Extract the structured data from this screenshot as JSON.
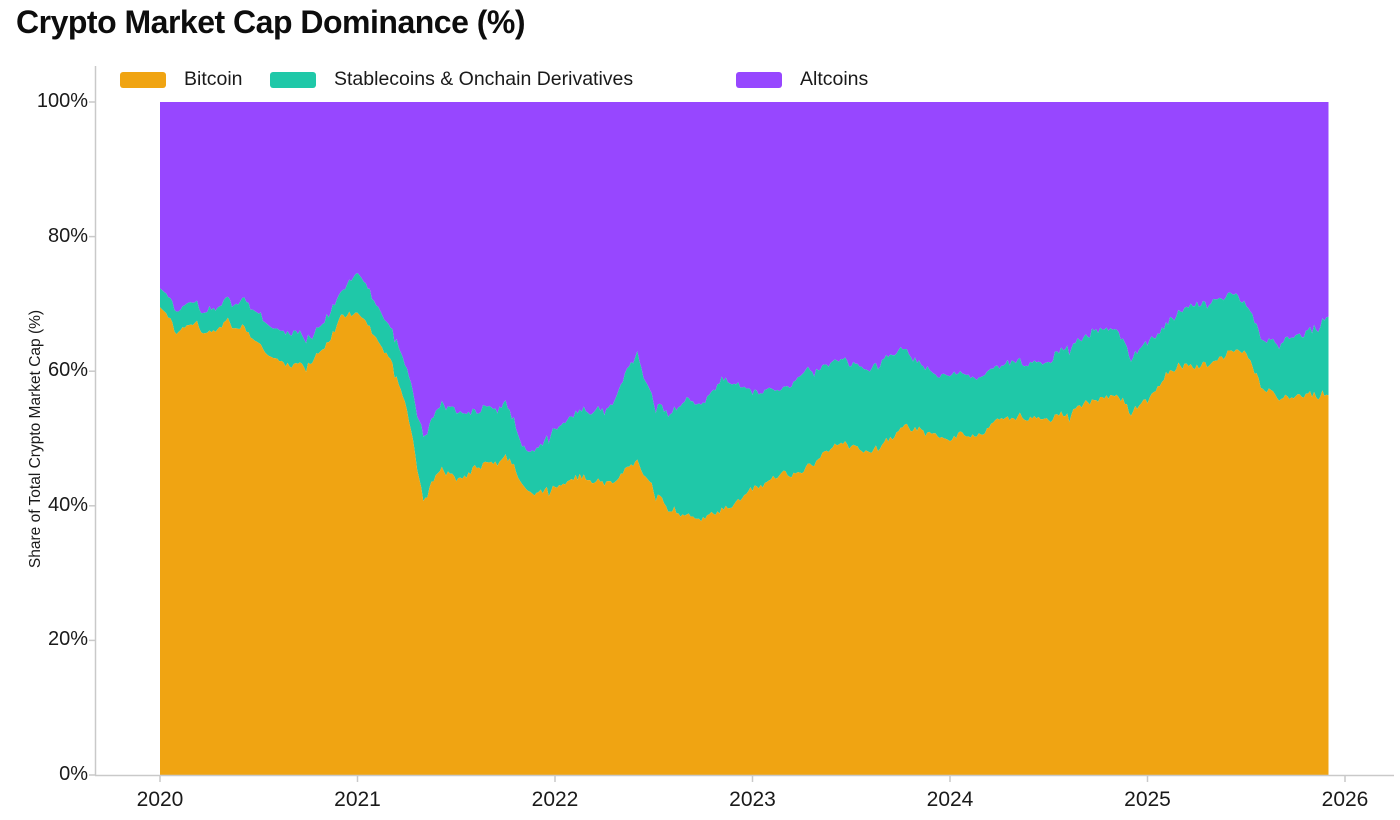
{
  "title": "Crypto Market Cap Dominance (%)",
  "colors": {
    "bitcoin": "#F0A412",
    "stablecoins": "#1FC8A8",
    "altcoins": "#9747FF",
    "axis_line": "#C9C9C9",
    "text": "#1A1A1A"
  },
  "chart_data": {
    "type": "area",
    "stacked": true,
    "stack_total": 100,
    "title": "Crypto Market Cap Dominance (%)",
    "xlabel": "",
    "ylabel": "Share of Total Crypto Market Cap (%)",
    "ylim": [
      0,
      100
    ],
    "xlim": [
      "2020-01",
      "2025-12"
    ],
    "grid": false,
    "legend_position": "top-left-inside",
    "y_ticks": [
      "0%",
      "20%",
      "40%",
      "60%",
      "80%",
      "100%"
    ],
    "y_tick_values": [
      0,
      20,
      40,
      60,
      80,
      100
    ],
    "x_ticks": [
      "2020",
      "2021",
      "2022",
      "2023",
      "2024",
      "2025",
      "2026"
    ],
    "x_months": [
      "2020-01",
      "2020-02",
      "2020-03",
      "2020-04",
      "2020-05",
      "2020-06",
      "2020-07",
      "2020-08",
      "2020-09",
      "2020-10",
      "2020-11",
      "2020-12",
      "2021-01",
      "2021-02",
      "2021-03",
      "2021-04",
      "2021-05",
      "2021-06",
      "2021-07",
      "2021-08",
      "2021-09",
      "2021-10",
      "2021-11",
      "2021-12",
      "2022-01",
      "2022-02",
      "2022-03",
      "2022-04",
      "2022-05",
      "2022-06",
      "2022-07",
      "2022-08",
      "2022-09",
      "2022-10",
      "2022-11",
      "2022-12",
      "2023-01",
      "2023-02",
      "2023-03",
      "2023-04",
      "2023-05",
      "2023-06",
      "2023-07",
      "2023-08",
      "2023-09",
      "2023-10",
      "2023-11",
      "2023-12",
      "2024-01",
      "2024-02",
      "2024-03",
      "2024-04",
      "2024-05",
      "2024-06",
      "2024-07",
      "2024-08",
      "2024-09",
      "2024-10",
      "2024-11",
      "2024-12",
      "2025-01",
      "2025-02",
      "2025-03",
      "2025-04",
      "2025-05",
      "2025-06",
      "2025-07",
      "2025-08",
      "2025-09",
      "2025-10",
      "2025-11",
      "2025-12"
    ],
    "series": [
      {
        "name": "Bitcoin",
        "color": "#F0A412",
        "values": [
          69.5,
          66.5,
          67.8,
          65.3,
          66.5,
          65.4,
          63.0,
          61.3,
          60.2,
          60.5,
          64.0,
          68.5,
          69.8,
          65.0,
          61.0,
          54.5,
          40.8,
          45.5,
          44.3,
          45.8,
          46.8,
          47.3,
          42.5,
          41.8,
          42.6,
          43.2,
          43.4,
          42.8,
          44.8,
          46.2,
          42.4,
          40.2,
          38.4,
          37.9,
          38.3,
          39.6,
          41.3,
          43.1,
          45.3,
          44.8,
          46.1,
          48.2,
          48.6,
          47.8,
          48.6,
          51.0,
          50.6,
          51.2,
          50.4,
          50.7,
          50.1,
          52.7,
          53.1,
          53.6,
          53.2,
          53.6,
          54.2,
          55.1,
          55.7,
          53.7,
          55.2,
          58.6,
          60.1,
          61.1,
          62.1,
          62.6,
          63.3,
          58.6,
          57.1,
          56.1,
          56.6,
          56.4
        ]
      },
      {
        "name": "Stablecoins & Onchain Derivatives",
        "color": "#1FC8A8",
        "values": [
          2.8,
          3.2,
          3.6,
          4.0,
          4.2,
          4.4,
          4.4,
          4.6,
          4.6,
          4.0,
          3.6,
          3.4,
          5.6,
          4.6,
          4.2,
          5.5,
          9.4,
          10.0,
          10.6,
          9.2,
          8.8,
          8.2,
          5.8,
          7.0,
          8.6,
          9.4,
          9.8,
          10.8,
          13.6,
          15.6,
          12.4,
          14.2,
          17.4,
          16.8,
          18.5,
          17.6,
          14.8,
          13.6,
          12.4,
          14.6,
          13.4,
          12.2,
          11.4,
          11.8,
          12.4,
          11.8,
          9.6,
          8.0,
          9.2,
          9.4,
          9.0,
          7.8,
          8.0,
          8.0,
          8.4,
          9.4,
          9.8,
          10.0,
          9.8,
          7.5,
          9.0,
          8.5,
          9.0,
          9.7,
          9.4,
          8.8,
          7.6,
          7.4,
          8.1,
          9.4,
          10.4,
          11.7
        ]
      },
      {
        "name": "Altcoins",
        "color": "#9747FF",
        "values": [
          27.7,
          30.3,
          28.6,
          30.7,
          29.3,
          30.2,
          32.6,
          34.1,
          35.2,
          35.5,
          32.4,
          28.1,
          24.6,
          30.4,
          34.8,
          40.0,
          49.8,
          44.5,
          45.1,
          45.0,
          44.4,
          44.5,
          51.7,
          51.2,
          48.8,
          47.4,
          46.8,
          46.4,
          41.6,
          38.2,
          45.2,
          45.6,
          44.2,
          45.3,
          43.2,
          42.8,
          43.9,
          43.3,
          42.3,
          40.6,
          40.5,
          39.6,
          40.0,
          40.4,
          39.0,
          37.2,
          39.8,
          40.8,
          40.4,
          39.9,
          40.9,
          39.5,
          38.9,
          38.4,
          38.4,
          37.0,
          36.0,
          34.9,
          34.5,
          38.8,
          35.8,
          32.9,
          30.9,
          29.2,
          28.5,
          28.6,
          29.1,
          34.0,
          34.8,
          34.5,
          33.0,
          31.9
        ]
      }
    ]
  }
}
